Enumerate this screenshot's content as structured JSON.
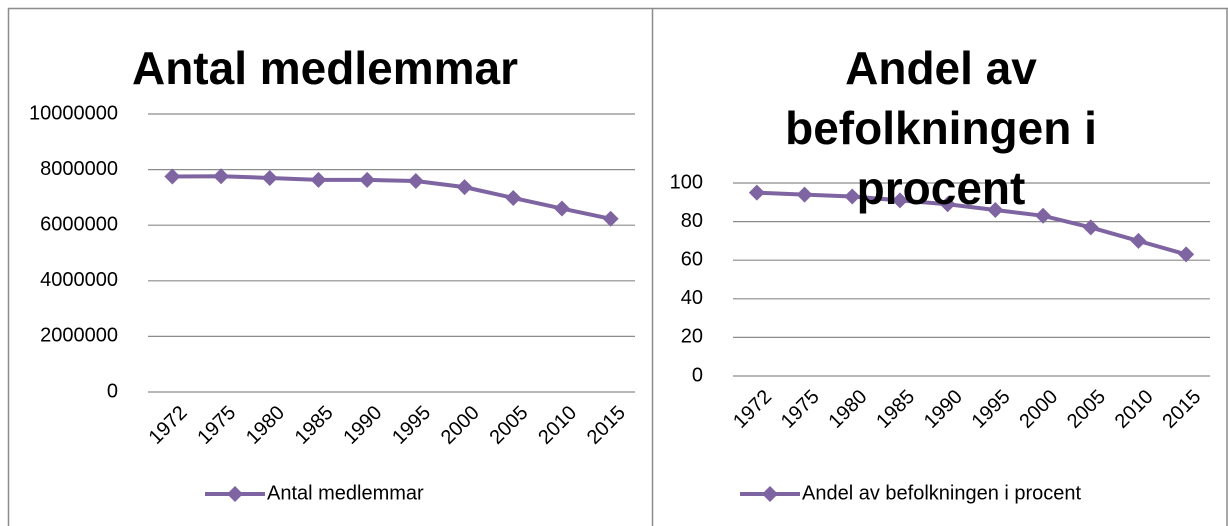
{
  "chart_data": [
    {
      "type": "line",
      "title": "Antal medlemmar",
      "categories": [
        "1972",
        "1975",
        "1980",
        "1985",
        "1990",
        "1995",
        "2000",
        "2005",
        "2010",
        "2015"
      ],
      "series": [
        {
          "name": "Antal medlemmar",
          "color": "#7f64a2",
          "values": [
            7750000,
            7760000,
            7700000,
            7630000,
            7630000,
            7590000,
            7370000,
            6980000,
            6600000,
            6230000
          ]
        }
      ],
      "ylim": [
        0,
        10000000
      ],
      "yticks": [
        0,
        2000000,
        4000000,
        6000000,
        8000000,
        10000000
      ],
      "grid": true,
      "legend": "bottom"
    },
    {
      "type": "line",
      "title": "Andel av befolkningen i procent",
      "categories": [
        "1972",
        "1975",
        "1980",
        "1985",
        "1990",
        "1995",
        "2000",
        "2005",
        "2010",
        "2015"
      ],
      "series": [
        {
          "name": "Andel av befolkningen i procent",
          "color": "#7f64a2",
          "values": [
            95,
            94,
            93,
            91,
            89,
            86,
            83,
            77,
            70,
            63
          ]
        }
      ],
      "ylim": [
        0,
        100
      ],
      "yticks": [
        0,
        20,
        40,
        60,
        80,
        100
      ],
      "grid": true,
      "legend": "bottom"
    }
  ]
}
